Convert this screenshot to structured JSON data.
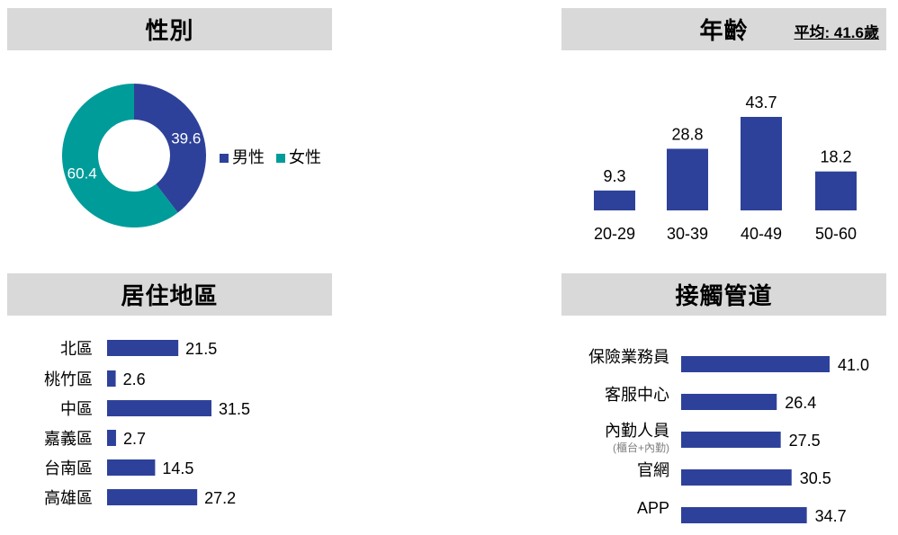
{
  "panels": {
    "gender": {
      "title": "性別"
    },
    "age": {
      "title": "年齡",
      "avg_label": "平均: 41.6歲"
    },
    "region": {
      "title": "居住地區"
    },
    "channel": {
      "title": "接觸管道"
    }
  },
  "colors": {
    "navy": "#2e419a",
    "teal": "#009c9a",
    "header_bg": "#d9d9d9"
  },
  "chart_data": [
    {
      "id": "gender",
      "type": "pie",
      "donut": true,
      "slices": [
        {
          "name": "男性",
          "value": 39.6,
          "color": "#2e419a"
        },
        {
          "name": "女性",
          "value": 60.4,
          "color": "#009c9a"
        }
      ],
      "legend": "right"
    },
    {
      "id": "age",
      "type": "bar",
      "orientation": "vertical",
      "categories": [
        "20-29",
        "30-39",
        "40-49",
        "50-60"
      ],
      "values": [
        9.3,
        28.8,
        43.7,
        18.2
      ],
      "color": "#2e419a"
    },
    {
      "id": "region",
      "type": "bar",
      "orientation": "horizontal",
      "categories": [
        "北區",
        "桃竹區",
        "中區",
        "嘉義區",
        "台南區",
        "高雄區"
      ],
      "values": [
        21.5,
        2.6,
        31.5,
        2.7,
        14.5,
        27.2
      ],
      "color": "#2e419a"
    },
    {
      "id": "channel",
      "type": "bar",
      "orientation": "horizontal",
      "categories": [
        "保險業務員",
        "客服中心",
        "內勤人員",
        "官網",
        "APP"
      ],
      "category_sublabels": [
        "",
        "",
        "(櫃台+內勤)",
        "",
        ""
      ],
      "values": [
        41.0,
        26.4,
        27.5,
        30.5,
        34.7
      ],
      "color": "#2e419a"
    }
  ]
}
